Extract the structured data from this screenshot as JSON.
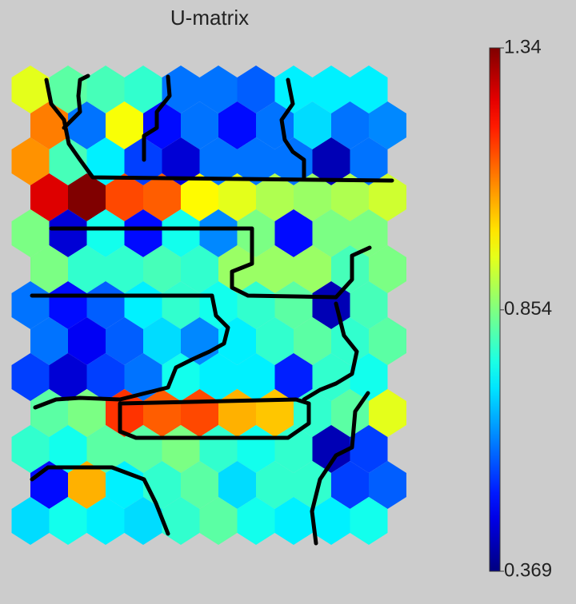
{
  "chart_data": {
    "type": "hexmap",
    "title": "U-matrix",
    "values": [
      [
        0.95,
        0.82,
        0.8,
        0.78,
        0.6,
        0.6,
        0.58,
        0.72,
        0.72,
        0.72
      ],
      [
        1.1,
        0.6,
        0.97,
        0.5,
        0.6,
        0.5,
        0.6,
        0.7,
        0.6,
        0.62
      ],
      [
        1.08,
        0.8,
        0.72,
        0.55,
        0.45,
        0.6,
        0.6,
        0.6,
        0.42,
        0.6
      ],
      [
        1.25,
        1.34,
        1.15,
        1.13,
        0.98,
        0.95,
        0.9,
        0.88,
        0.9,
        0.93
      ],
      [
        0.85,
        0.45,
        0.75,
        0.5,
        0.75,
        0.62,
        0.85,
        0.5,
        0.85,
        0.85
      ],
      [
        0.85,
        0.78,
        0.78,
        0.8,
        0.78,
        0.88,
        0.88,
        0.88,
        0.8,
        0.85
      ],
      [
        0.6,
        0.5,
        0.58,
        0.72,
        0.78,
        0.75,
        0.78,
        0.82,
        0.42,
        0.8
      ],
      [
        0.6,
        0.48,
        0.58,
        0.7,
        0.62,
        0.72,
        0.78,
        0.82,
        0.78,
        0.82
      ],
      [
        0.55,
        0.45,
        0.55,
        0.6,
        0.75,
        0.72,
        0.72,
        0.52,
        0.78,
        0.75
      ],
      [
        0.82,
        0.85,
        1.17,
        1.13,
        1.15,
        1.05,
        1.03,
        0.78,
        0.82,
        0.95
      ],
      [
        0.78,
        0.75,
        0.82,
        0.82,
        0.85,
        0.78,
        0.75,
        0.78,
        0.42,
        0.55
      ],
      [
        0.5,
        1.05,
        0.72,
        0.78,
        0.82,
        0.7,
        0.78,
        0.78,
        0.55,
        0.58
      ],
      [
        0.7,
        0.75,
        0.72,
        0.7,
        0.78,
        0.82,
        0.75,
        0.72,
        0.72,
        0.75
      ]
    ],
    "colormap": "jet",
    "clim": [
      0.369,
      1.34
    ],
    "cticks": [
      0.369,
      0.854,
      1.34
    ]
  }
}
